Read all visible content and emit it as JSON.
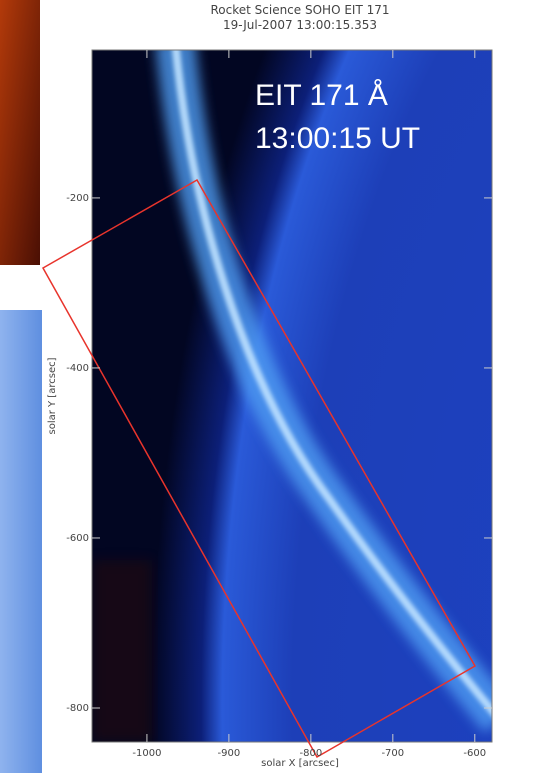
{
  "chart_data": {
    "type": "image",
    "title": "Rocket Science SOHO EIT 171",
    "subtitle": "19-Jul-2007 13:00:15.353",
    "annotations": [
      "EIT 171 Å",
      "13:00:15 UT"
    ],
    "xlabel": "solar X [arcsec]",
    "ylabel": "solar Y [arcsec]",
    "xlim": [
      -1067,
      -579
    ],
    "ylim": [
      -840,
      -26
    ],
    "xticks": [
      -1000,
      -900,
      -800,
      -700,
      -600
    ],
    "yticks": [
      -200,
      -400,
      -600,
      -800
    ]
  }
}
